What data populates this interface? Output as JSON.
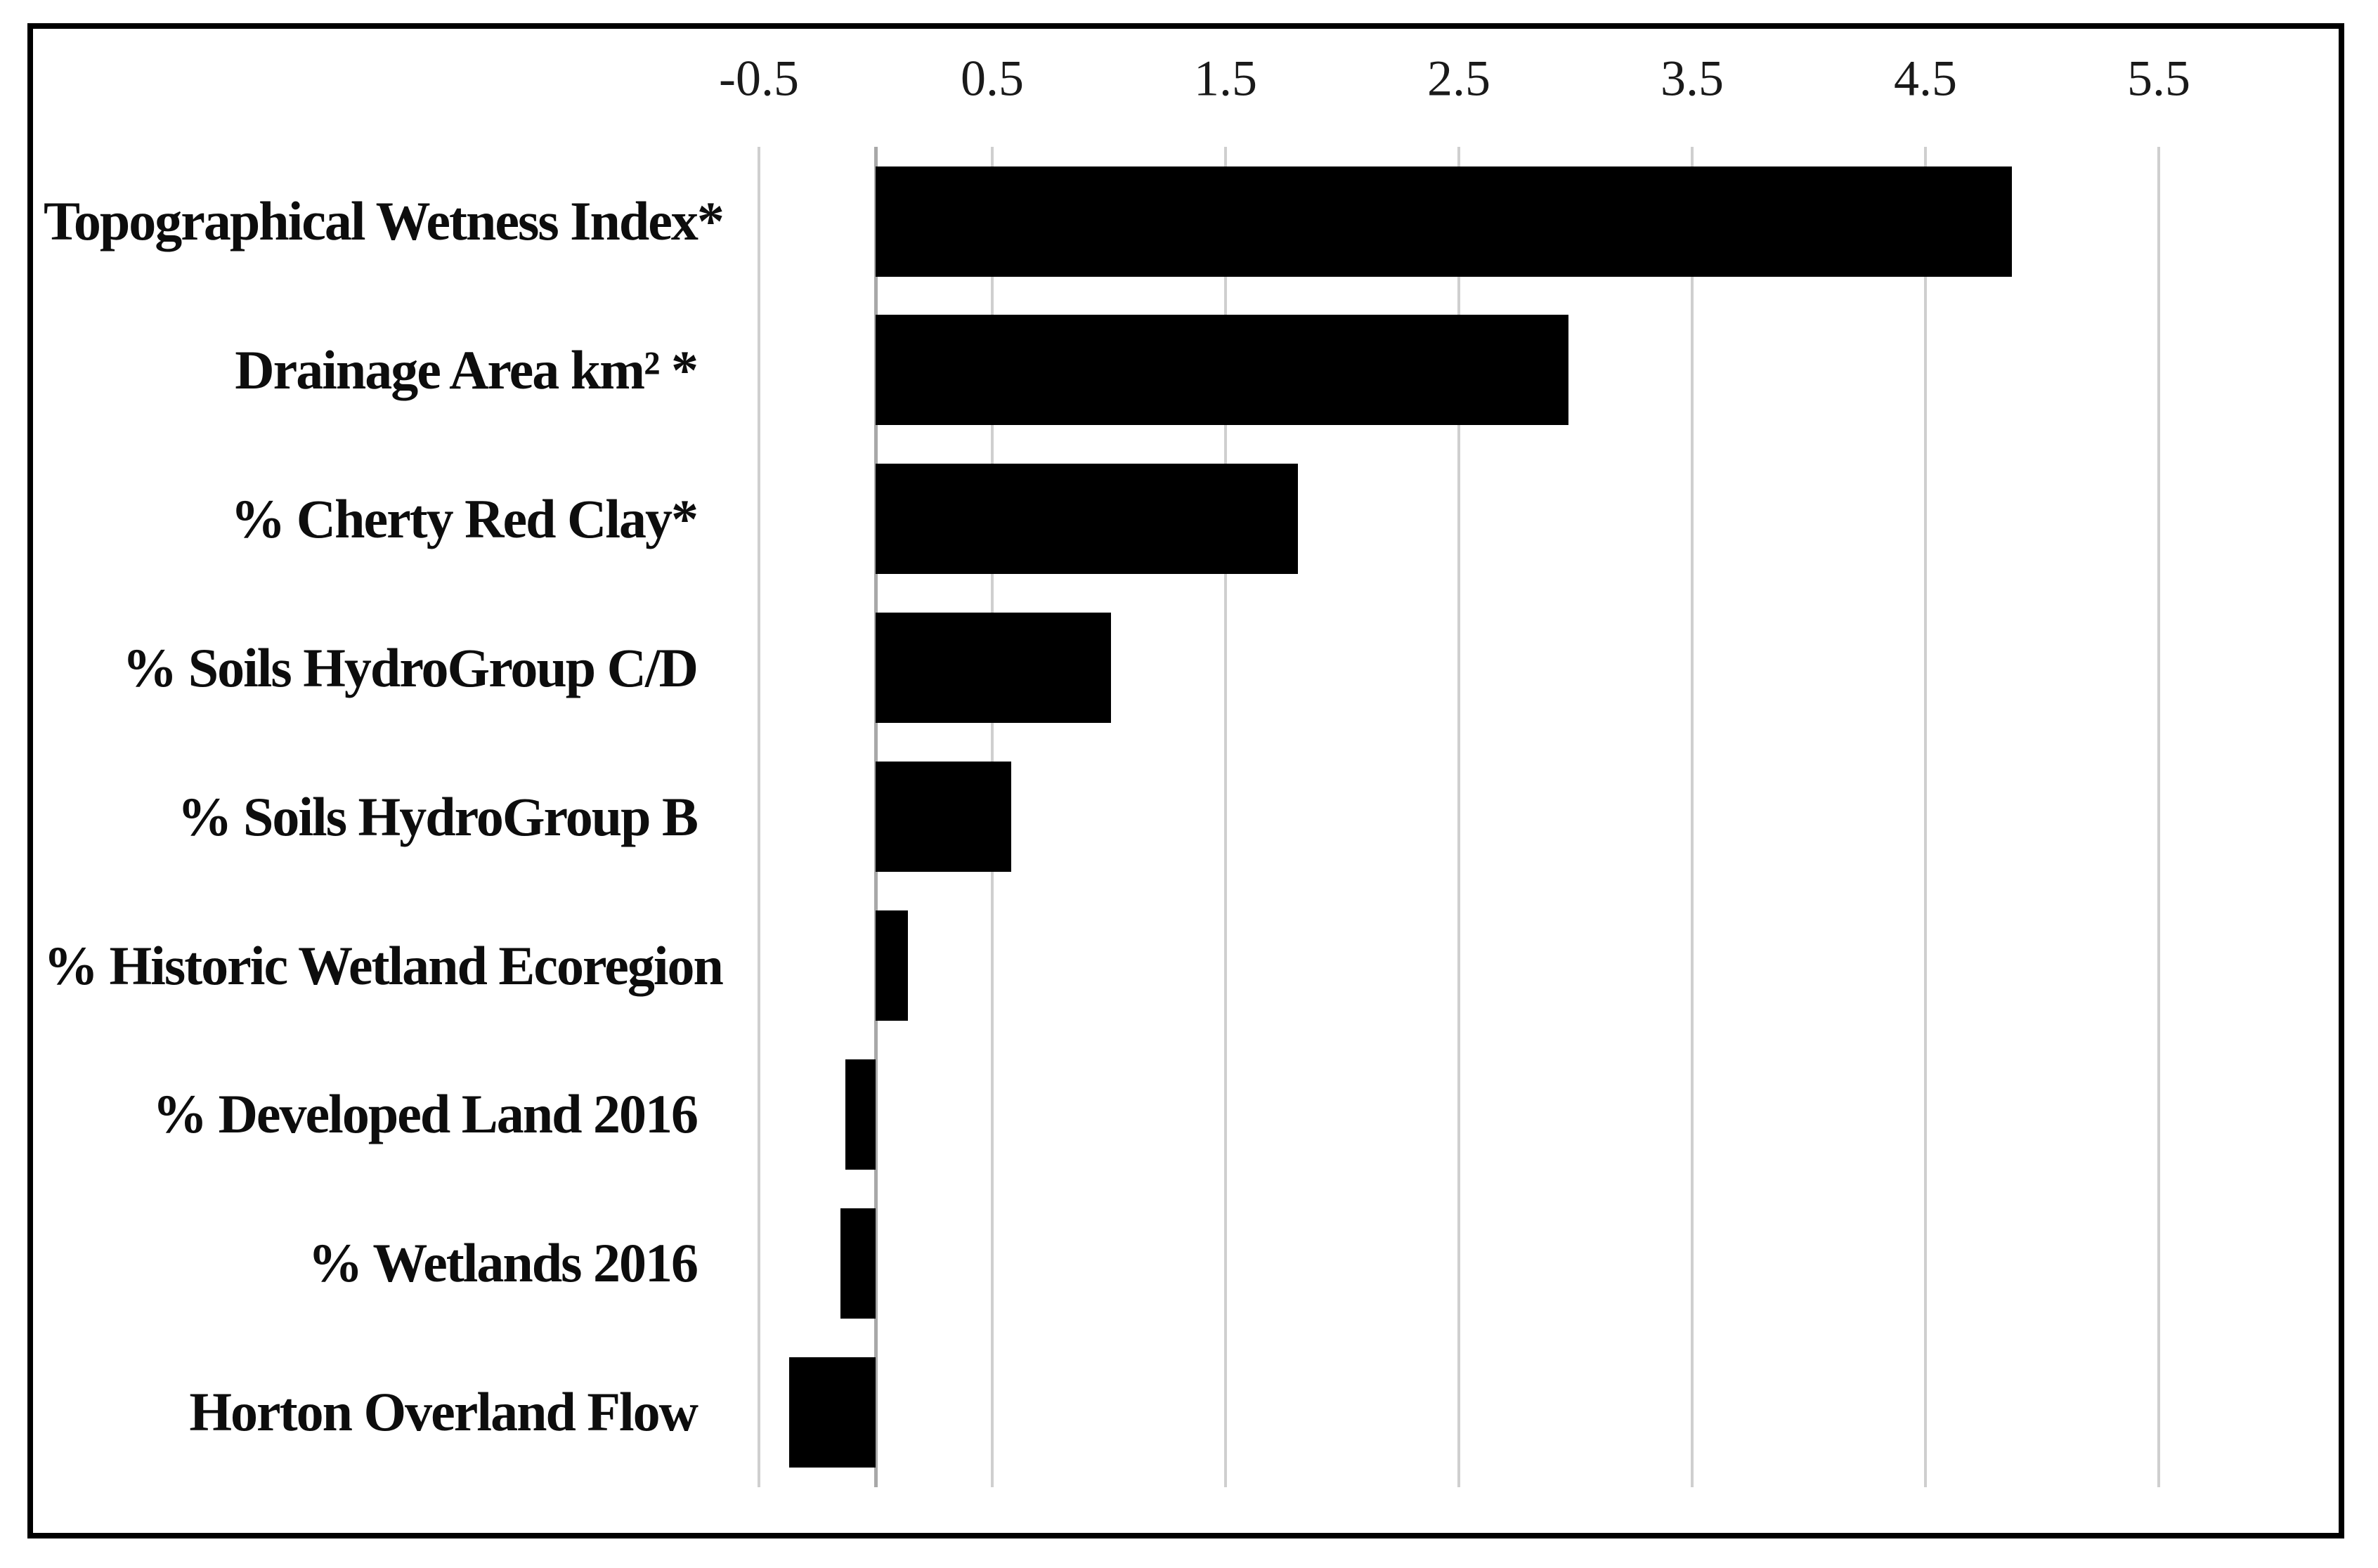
{
  "figure": {
    "background": "#ffffff",
    "border_color": "#000000"
  },
  "chart_data": {
    "type": "bar",
    "orientation": "horizontal",
    "title": "",
    "xlabel": "",
    "ylabel": "",
    "categories": [
      "Topographical Wetness Index*",
      "Drainage Area km² *",
      "% Cherty Red Clay*",
      "% Soils HydroGroup C/D",
      "% Soils HydroGroup B",
      "% Historic Wetland Ecoregion",
      "% Developed Land 2016",
      "% Wetlands 2016",
      "Horton Overland Flow"
    ],
    "values": [
      4.87,
      2.97,
      1.81,
      1.01,
      0.58,
      0.14,
      -0.13,
      -0.15,
      -0.37
    ],
    "x_tick_values": [
      -0.5,
      0.5,
      1.5,
      2.5,
      3.5,
      4.5,
      5.5
    ],
    "x_tick_labels": [
      "-0.5",
      "0.5",
      "1.5",
      "2.5",
      "3.5",
      "4.5",
      "5.5"
    ],
    "xlim": [
      -0.62,
      5.85
    ],
    "grid": "vertical-only",
    "tick_position": "top",
    "legend": "none",
    "bar_color": "#000000",
    "gridline_color": "#cfcfcf",
    "zero_axis_color": "#a8a8a8",
    "text_color": "#1a1a1a"
  }
}
